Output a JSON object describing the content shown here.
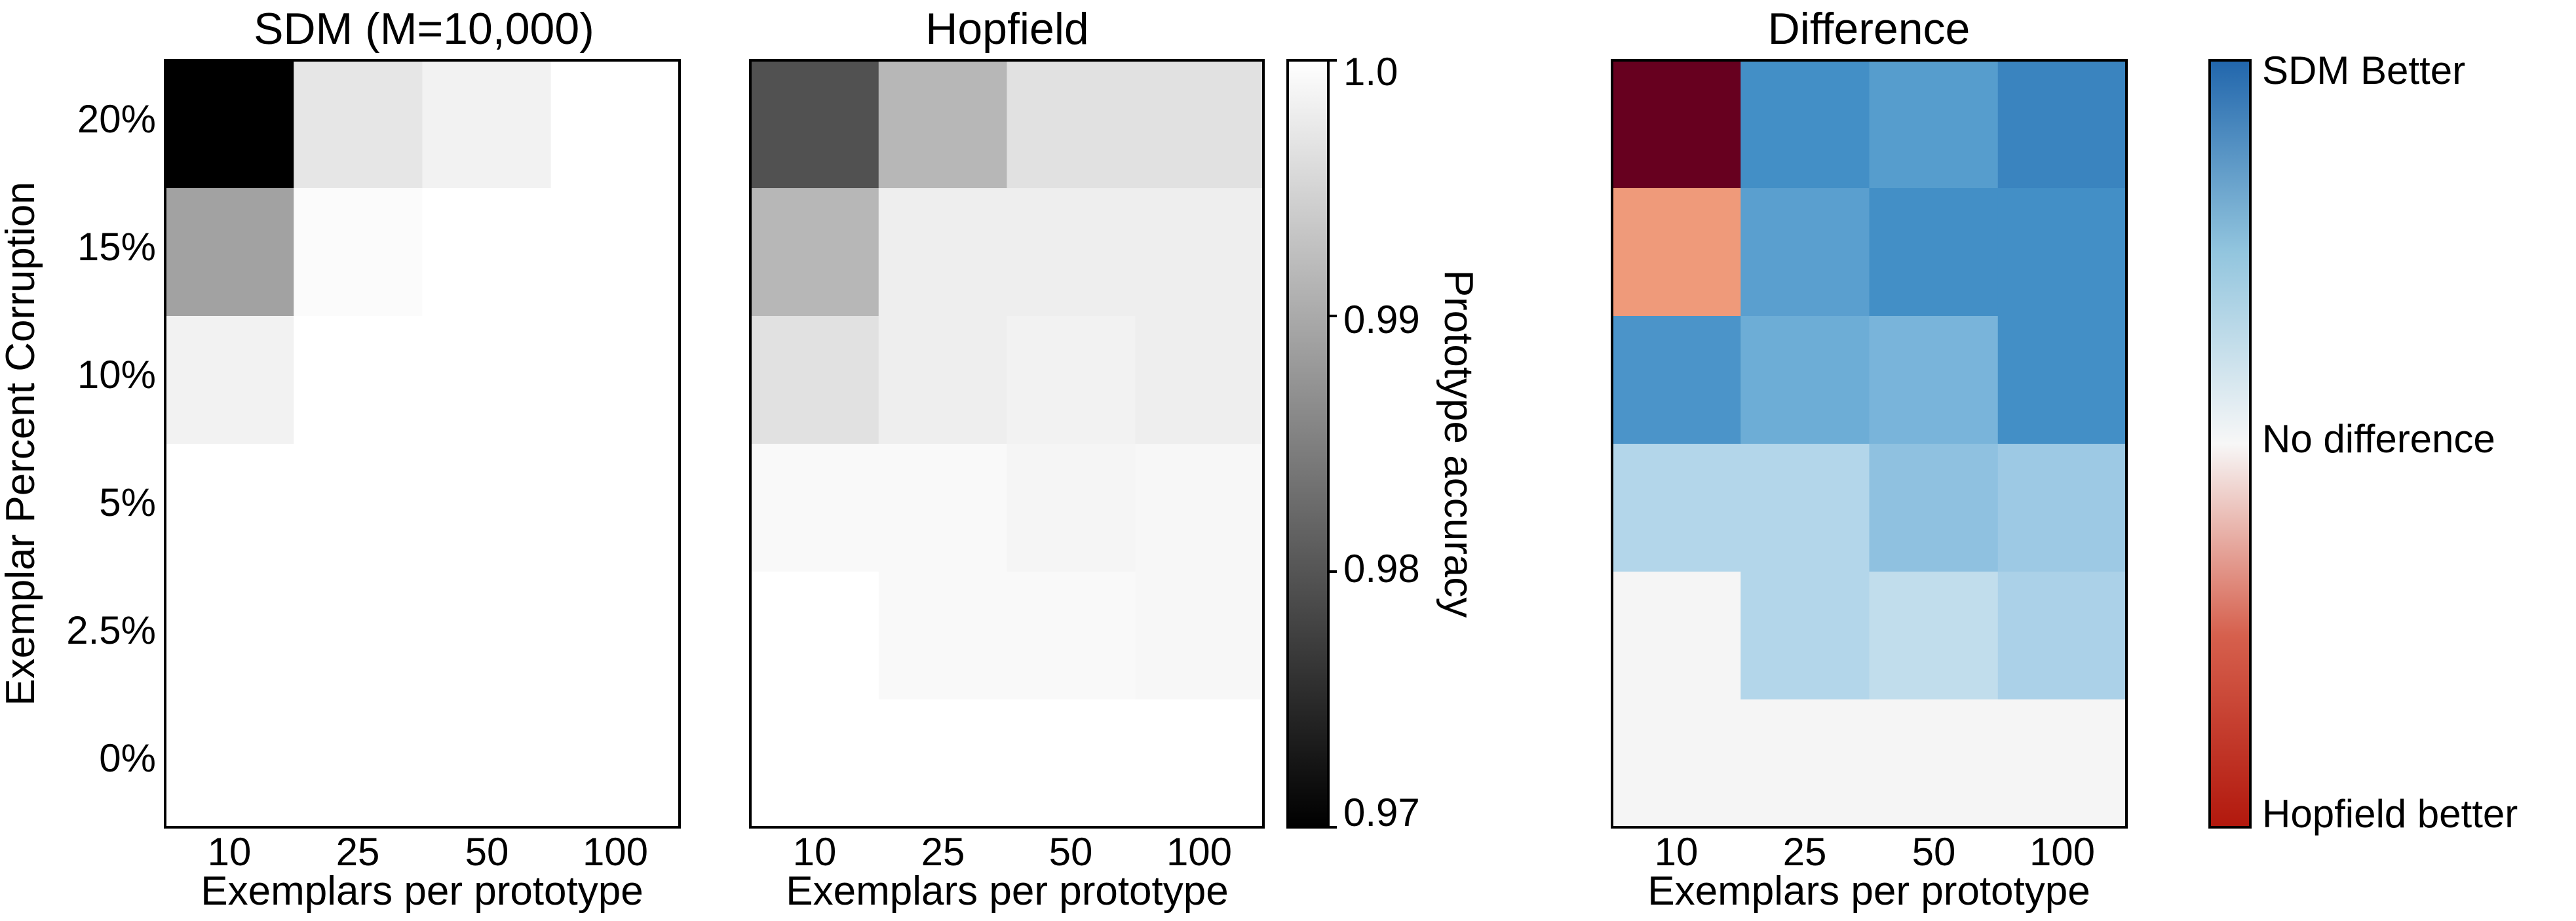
{
  "chart_data": [
    {
      "type": "heatmap",
      "title": "SDM (M=10,000)",
      "x_categories": [
        "10",
        "25",
        "50",
        "100"
      ],
      "y_categories": [
        "20%",
        "15%",
        "10%",
        "5%",
        "2.5%",
        "0%"
      ],
      "xlabel": "Exemplars per prototype",
      "ylabel": "Exemplar Percent Corruption",
      "colormap": "grayscale",
      "vlim": [
        0.97,
        1.0
      ],
      "values": [
        [
          0.97,
          0.997,
          0.9985,
          1.0
        ],
        [
          0.989,
          0.9995,
          1.0,
          1.0
        ],
        [
          0.9985,
          1.0,
          1.0,
          1.0
        ],
        [
          1.0,
          1.0,
          1.0,
          1.0
        ],
        [
          1.0,
          1.0,
          1.0,
          1.0
        ],
        [
          1.0,
          1.0,
          1.0,
          1.0
        ]
      ]
    },
    {
      "type": "heatmap",
      "title": "Hopfield",
      "x_categories": [
        "10",
        "25",
        "50",
        "100"
      ],
      "y_categories": [
        "20%",
        "15%",
        "10%",
        "5%",
        "2.5%",
        "0%"
      ],
      "xlabel": "Exemplars per prototype",
      "colormap": "grayscale",
      "vlim": [
        0.97,
        1.0
      ],
      "values": [
        [
          0.9795,
          0.9915,
          0.9965,
          0.9965
        ],
        [
          0.9915,
          0.998,
          0.998,
          0.998
        ],
        [
          0.9965,
          0.998,
          0.9985,
          0.998
        ],
        [
          0.9993,
          0.9993,
          0.9988,
          0.9991
        ],
        [
          1.0,
          0.9993,
          0.9993,
          0.9991
        ],
        [
          1.0,
          1.0,
          1.0,
          1.0
        ]
      ],
      "colorbar": {
        "label": "Prototype accuracy",
        "ticks": [
          "1.0",
          "0.99",
          "0.98",
          "0.97"
        ],
        "tick_values": [
          1.0,
          0.99,
          0.98,
          0.97
        ]
      }
    },
    {
      "type": "heatmap",
      "title": "Difference",
      "x_categories": [
        "10",
        "25",
        "50",
        "100"
      ],
      "y_categories": [
        "20%",
        "15%",
        "10%",
        "5%",
        "2.5%",
        "0%"
      ],
      "xlabel": "Exemplars per prototype",
      "colormap": "red-white-blue",
      "vlim": [
        -1.0,
        1.0
      ],
      "values": [
        [
          -1.0,
          0.8,
          0.7,
          0.88
        ],
        [
          -0.5,
          0.68,
          0.8,
          0.8
        ],
        [
          0.76,
          0.58,
          0.53,
          0.8
        ],
        [
          0.32,
          0.32,
          0.45,
          0.4
        ],
        [
          0.0,
          0.32,
          0.25,
          0.35
        ],
        [
          0.0,
          0.0,
          0.0,
          0.0
        ]
      ],
      "colorbar": {
        "ticks": [
          "SDM Better",
          "No difference",
          "Hopfield better"
        ]
      }
    }
  ]
}
